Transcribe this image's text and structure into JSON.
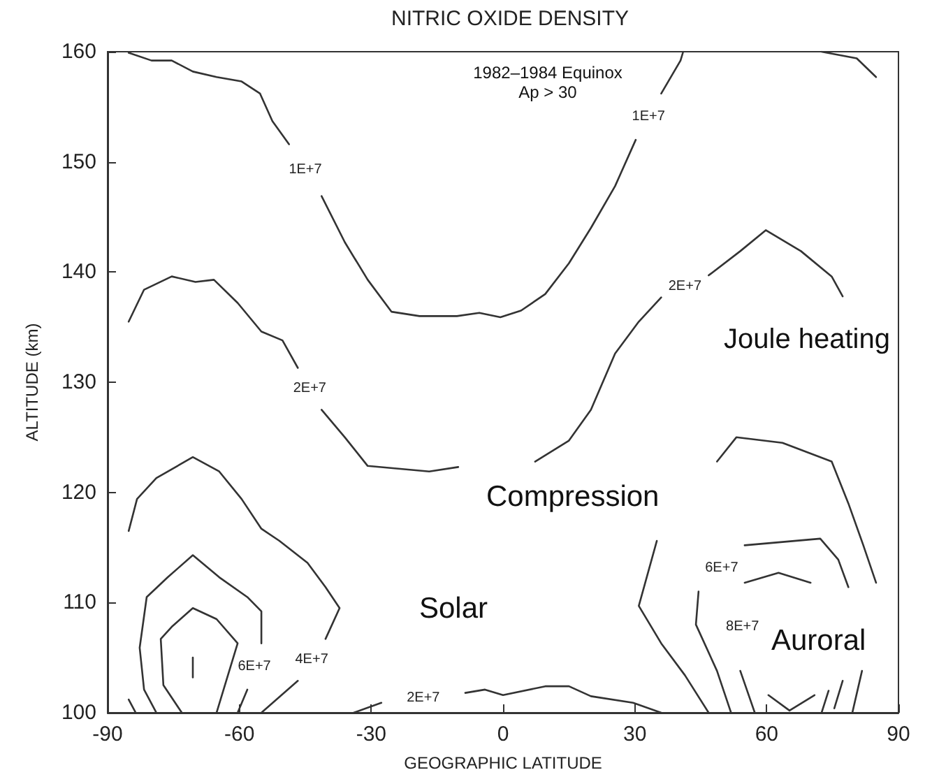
{
  "chart_data": {
    "type": "line",
    "title": "NITRIC OXIDE DENSITY",
    "xlabel": "GEOGRAPHIC LATITUDE",
    "ylabel": "ALTITUDE (km)",
    "xlim": [
      -90,
      90
    ],
    "xticks": [
      -90,
      -60,
      -30,
      0,
      30,
      60,
      90
    ],
    "ylim": [
      100,
      160
    ],
    "yticks": [
      100,
      110,
      120,
      130,
      140,
      150,
      160
    ],
    "marker": "none",
    "line_style": "solid",
    "series": [
      {
        "color": "#333333",
        "x": [
          -85.2,
          -80,
          -75.4,
          -70.6,
          -65.2,
          -59.5,
          -55.3,
          -52.5,
          -48.7,
          null,
          -41.3,
          -36,
          -30.8,
          -25.4,
          -19,
          -10.5,
          -5.4,
          -0.6,
          4.1,
          9.6,
          15,
          20,
          25.5,
          30.2,
          null,
          36,
          40.4,
          41
        ],
        "values": [
          159.9,
          159.2,
          159.2,
          158.2,
          157.7,
          157.3,
          156.2,
          153.7,
          151.6,
          null,
          146.9,
          142.7,
          139.3,
          136.4,
          136,
          136,
          136.3,
          135.9,
          136.5,
          138,
          140.8,
          144,
          147.8,
          152,
          null,
          156.2,
          159.2,
          160
        ]
      },
      {
        "color": "#333333",
        "x": [
          72.5,
          80.5,
          84.9
        ],
        "values": [
          160,
          159.4,
          157.7
        ]
      },
      {
        "color": "#333333",
        "x": [
          -85.2,
          -81.7,
          -75.4,
          -70,
          -65.8,
          -60.4,
          -55,
          -50.2,
          -46.7,
          null,
          -41.3,
          -36,
          -30.8,
          -16.8,
          -10.2,
          null,
          7.3,
          15,
          20,
          25.5,
          30.9,
          36,
          null,
          46.8,
          54,
          59.8,
          67.8,
          74.8,
          77.3
        ],
        "values": [
          135.5,
          138.4,
          139.6,
          139.1,
          139.3,
          137.2,
          134.6,
          133.8,
          131.3,
          null,
          127.5,
          125,
          122.4,
          121.9,
          122.3,
          null,
          122.8,
          124.7,
          127.5,
          132.6,
          135.5,
          137.7,
          null,
          139.7,
          141.9,
          143.8,
          141.9,
          139.6,
          137.8
        ]
      },
      {
        "color": "#333333",
        "x": [
          -34,
          -27.7,
          null,
          -8.6,
          -4.1,
          0,
          9.6,
          15,
          20,
          29.6,
          36
        ],
        "values": [
          100,
          100.9,
          null,
          101.8,
          102.1,
          101.6,
          102.4,
          102.4,
          101.5,
          100.9,
          100
        ]
      },
      {
        "color": "#333333",
        "x": [
          -85.2,
          -83.3,
          -78.9,
          -70.6,
          -64.6,
          -59.5,
          -55,
          -50.9,
          -44.5,
          -40.4,
          -37.2,
          -40.4,
          null,
          -46.7,
          -55
        ],
        "values": [
          116.5,
          119.4,
          121.3,
          123.2,
          121.9,
          119.4,
          116.7,
          115.6,
          113.6,
          111.4,
          109.5,
          106.7,
          null,
          102.9,
          100
        ]
      },
      {
        "color": "#333333",
        "x": [
          46.8,
          41.4,
          36,
          30.9,
          35,
          null,
          48.7,
          53.1,
          63.6,
          74.8,
          78.6,
          82,
          84.9,
          null,
          81.7,
          79.5
        ],
        "values": [
          100,
          103.4,
          106.3,
          109.7,
          115.6,
          null,
          122.8,
          125,
          124.5,
          122.8,
          119,
          115.2,
          111.8,
          null,
          103.8,
          100
        ]
      },
      {
        "color": "#333333",
        "x": [
          51.9,
          48.7,
          43.9,
          44.5,
          null,
          55,
          72.2,
          76.3,
          78.6,
          null,
          77.3,
          75.4
        ],
        "values": [
          100,
          103.8,
          108,
          111,
          null,
          115.2,
          115.8,
          113.9,
          111.4,
          null,
          102.9,
          100.4
        ]
      },
      {
        "color": "#333333",
        "x": [
          57.3,
          54,
          null,
          55,
          62.7,
          70,
          null,
          74.1,
          72.5
        ],
        "values": [
          100,
          103.8,
          null,
          111.8,
          112.7,
          111.8,
          null,
          102,
          100
        ]
      },
      {
        "color": "#333333",
        "x": [
          60.4,
          65.2,
          70.9
        ],
        "values": [
          101.6,
          100.2,
          101.6
        ]
      },
      {
        "color": "#333333",
        "x": [
          -78.9,
          -81.7,
          -82.7,
          -81.1,
          -76.3,
          -70.6,
          -64.6,
          -58.2,
          -55,
          -55,
          null,
          -58.2,
          -60.4
        ],
        "values": [
          100,
          102.1,
          105.9,
          110.5,
          112.3,
          114.3,
          112.3,
          110.5,
          109.2,
          106.3,
          null,
          102.1,
          100
        ]
      },
      {
        "color": "#333333",
        "x": [
          -73.1,
          -77.3,
          -77.9,
          -75.4,
          -70.6,
          -65.2,
          -60.4,
          -63,
          -65.2
        ],
        "values": [
          100,
          102.5,
          106.7,
          107.8,
          109.5,
          108.5,
          106.3,
          102.9,
          100
        ]
      },
      {
        "color": "#333333",
        "x": [
          -70.6,
          -70.6
        ],
        "values": [
          105,
          103.2
        ]
      },
      {
        "color": "#333333",
        "x": [
          -85.2,
          -83.6
        ],
        "values": [
          101.2,
          100
        ]
      }
    ],
    "annotations": [
      "1982–1984 Equinox",
      "Ap > 30",
      "Joule heating",
      "Compression",
      "Solar",
      "Auroral",
      {
        "text": "1E+7",
        "x": -48.7,
        "y": 151.6
      },
      {
        "text": "1E+7",
        "x": 30.2,
        "y": 152
      },
      {
        "text": "2E+7",
        "x": -46.7,
        "y": 131.3
      },
      {
        "text": "2E+7",
        "x": 36,
        "y": 137.7
      },
      {
        "text": "2E+7",
        "x": -27.7,
        "y": 100.9
      },
      {
        "text": "4E+7",
        "x": -40.4,
        "y": 106.7
      },
      {
        "text": "6E+7",
        "x": -55,
        "y": 106.3
      },
      {
        "text": "6E+7",
        "x": 44.5,
        "y": 111
      },
      {
        "text": "8E+7",
        "x": 54,
        "y": 103.8
      }
    ]
  }
}
